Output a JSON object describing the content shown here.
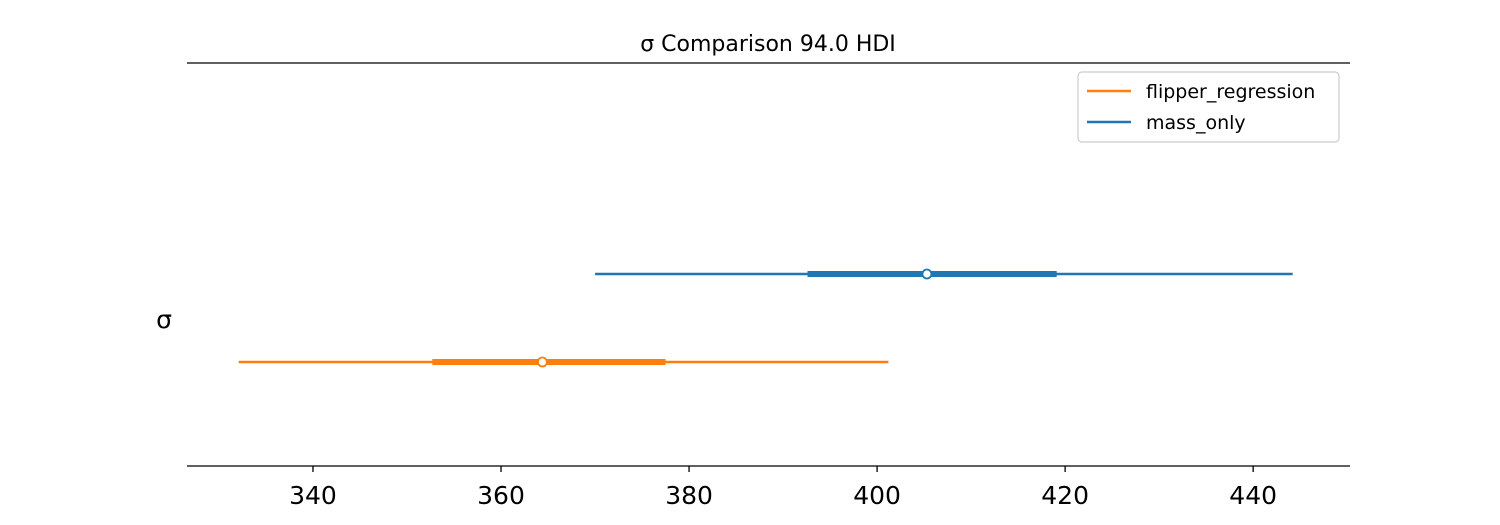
{
  "chart_data": {
    "type": "forest",
    "title": "σ Comparison 94.0 HDI",
    "ylabel": "σ",
    "xlim": [
      326.6,
      450.3
    ],
    "xticks": [
      340,
      360,
      380,
      400,
      420,
      440
    ],
    "tick_labels": [
      "340",
      "360",
      "380",
      "400",
      "420",
      "440"
    ],
    "legend_position": "top-right",
    "series": [
      {
        "name": "mass_only",
        "color": "#1f77b4",
        "hdi_94": [
          370.0,
          444.2
        ],
        "iqr": [
          392.6,
          419.1
        ],
        "point": 405.3
      },
      {
        "name": "flipper_regression",
        "color": "#ff7f0e",
        "hdi_94": [
          332.1,
          401.2
        ],
        "iqr": [
          352.7,
          377.5
        ],
        "point": 364.4
      }
    ],
    "legend": [
      {
        "name": "flipper_regression",
        "color": "#ff7f0e"
      },
      {
        "name": "mass_only",
        "color": "#1f77b4"
      }
    ]
  }
}
